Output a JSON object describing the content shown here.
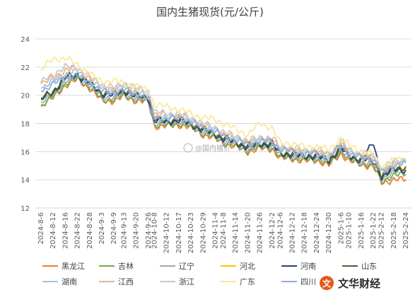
{
  "chart_data": {
    "type": "line",
    "title": "国内生猪现货(元/公斤)",
    "xlabel": "",
    "ylabel": "",
    "ylim": [
      12,
      24
    ],
    "yticks": [
      12,
      14,
      16,
      18,
      20,
      22,
      24
    ],
    "grid": true,
    "legend_position": "bottom",
    "x_tick_labels": [
      "2024-8-6",
      "2024-8-12",
      "2024-8-16",
      "2024-8-22",
      "2024-8-28",
      "2024-9-3",
      "2024-9-9",
      "2024-9-13",
      "2024-9-20",
      "2024-9-26",
      "2024-10-8",
      "2024-10-12",
      "2024-10-17",
      "2024-10-23",
      "2024-10-29",
      "2024-11-4",
      "2024-11-8",
      "2024-11-14",
      "2024-11-20",
      "2024-11-26",
      "2024-12-2",
      "2024-12-6",
      "2024-12-12",
      "2024-12-18",
      "2024-12-24",
      "2024-12-30",
      "2025-1-6",
      "2025-1-10",
      "2025-1-16",
      "2025-1-22",
      "2025-2-12",
      "2025-2-18",
      "2025-2-24"
    ],
    "anchors": [
      0,
      6,
      12,
      18,
      24,
      30,
      36,
      41,
      47,
      53,
      56,
      62,
      68,
      74,
      80,
      86,
      90,
      96,
      102,
      108,
      114,
      118,
      124,
      130,
      136,
      142,
      148,
      152,
      158,
      164,
      168,
      174,
      180
    ],
    "series": [
      {
        "name": "黑龙江",
        "color": "#ed7d31",
        "values": [
          19.3,
          19.8,
          20.7,
          21.1,
          20.5,
          19.6,
          19.6,
          19.9,
          19.6,
          19.5,
          17.8,
          17.8,
          17.9,
          17.7,
          17.2,
          16.9,
          16.6,
          16.3,
          16.0,
          16.2,
          16.2,
          15.5,
          15.5,
          15.3,
          15.4,
          15.0,
          15.9,
          15.3,
          15.1,
          14.9,
          13.8,
          14.0,
          14.0
        ]
      },
      {
        "name": "吉林",
        "color": "#70ad47",
        "values": [
          19.2,
          19.9,
          20.8,
          21.2,
          20.6,
          19.7,
          19.7,
          20.0,
          19.7,
          19.6,
          17.9,
          17.9,
          18.0,
          17.8,
          17.3,
          17.0,
          16.7,
          16.4,
          16.1,
          16.3,
          16.3,
          15.6,
          15.6,
          15.4,
          15.5,
          15.1,
          16.1,
          15.4,
          15.2,
          15.0,
          13.9,
          14.3,
          14.4
        ]
      },
      {
        "name": "辽宁",
        "color": "#a5a5a5",
        "values": [
          19.5,
          20.0,
          21.0,
          21.3,
          20.7,
          19.9,
          19.8,
          20.1,
          19.8,
          19.7,
          18.0,
          18.0,
          18.1,
          17.9,
          17.4,
          17.1,
          16.8,
          16.5,
          16.2,
          16.4,
          16.4,
          15.7,
          15.7,
          15.5,
          15.6,
          15.2,
          16.2,
          15.5,
          15.3,
          15.1,
          14.1,
          14.5,
          14.7
        ]
      },
      {
        "name": "河北",
        "color": "#ffc000",
        "values": [
          19.8,
          20.3,
          21.3,
          21.5,
          20.9,
          20.2,
          20.1,
          20.4,
          20.0,
          19.9,
          18.3,
          18.2,
          18.3,
          18.0,
          17.6,
          17.3,
          17.0,
          16.7,
          16.4,
          16.6,
          16.6,
          15.9,
          15.9,
          15.7,
          15.8,
          15.4,
          16.4,
          15.7,
          15.5,
          15.3,
          14.3,
          14.8,
          15.0
        ]
      },
      {
        "name": "河南",
        "color": "#264478",
        "values": [
          19.7,
          20.2,
          21.2,
          21.4,
          20.8,
          20.1,
          20.0,
          20.3,
          19.9,
          19.8,
          18.2,
          18.1,
          18.2,
          17.9,
          17.5,
          17.2,
          16.9,
          16.6,
          16.3,
          16.5,
          16.5,
          15.8,
          15.8,
          15.6,
          15.7,
          15.3,
          16.3,
          15.6,
          15.4,
          16.6,
          14.2,
          14.7,
          14.7
        ]
      },
      {
        "name": "山东",
        "color": "#43682b",
        "values": [
          19.8,
          20.3,
          21.3,
          21.5,
          20.9,
          20.2,
          20.1,
          20.4,
          20.0,
          19.9,
          18.3,
          18.2,
          18.3,
          18.0,
          17.6,
          17.3,
          17.0,
          16.7,
          16.4,
          16.6,
          16.6,
          15.9,
          15.9,
          15.7,
          15.8,
          15.4,
          16.4,
          15.7,
          15.5,
          15.3,
          14.3,
          14.8,
          14.9
        ]
      },
      {
        "name": "湖南",
        "color": "#9dc3e6",
        "values": [
          20.5,
          21.0,
          21.5,
          21.7,
          21.0,
          20.5,
          20.3,
          20.6,
          20.2,
          20.0,
          18.5,
          18.4,
          18.5,
          18.2,
          17.8,
          17.5,
          17.2,
          16.9,
          16.6,
          16.8,
          16.8,
          16.1,
          16.1,
          15.9,
          16.0,
          15.6,
          16.6,
          15.9,
          15.7,
          15.5,
          14.6,
          15.1,
          15.3
        ]
      },
      {
        "name": "江西",
        "color": "#f4b183",
        "values": [
          20.8,
          21.2,
          21.8,
          21.9,
          21.2,
          20.7,
          20.4,
          20.8,
          20.4,
          20.2,
          18.7,
          18.6,
          18.6,
          18.3,
          17.9,
          17.6,
          17.3,
          17.0,
          16.7,
          16.9,
          16.9,
          16.2,
          16.2,
          16.0,
          16.1,
          15.7,
          16.7,
          16.0,
          15.8,
          15.6,
          14.7,
          15.2,
          15.4
        ]
      },
      {
        "name": "浙江",
        "color": "#c9c9c9",
        "values": [
          20.9,
          21.5,
          22.0,
          22.0,
          21.3,
          20.8,
          20.5,
          20.9,
          20.5,
          20.3,
          18.8,
          18.7,
          18.7,
          18.4,
          18.0,
          17.7,
          17.4,
          17.1,
          16.8,
          17.0,
          17.0,
          16.3,
          16.3,
          16.1,
          16.2,
          15.8,
          16.8,
          16.1,
          15.9,
          15.7,
          14.8,
          15.3,
          15.5
        ]
      },
      {
        "name": "广东",
        "color": "#ffe699",
        "values": [
          21.8,
          22.6,
          22.6,
          22.2,
          21.5,
          21.0,
          21.0,
          20.9,
          20.6,
          20.4,
          19.3,
          19.2,
          19.0,
          18.7,
          18.4,
          18.3,
          18.0,
          17.6,
          17.2,
          18.0,
          17.7,
          16.6,
          16.6,
          16.3,
          16.4,
          16.1,
          17.0,
          16.4,
          16.1,
          15.8,
          14.9,
          15.4,
          15.5
        ]
      },
      {
        "name": "四川",
        "color": "#8faadc",
        "values": [
          20.3,
          20.8,
          21.2,
          21.4,
          20.8,
          20.3,
          20.1,
          20.4,
          20.0,
          19.8,
          18.4,
          18.3,
          18.4,
          18.1,
          17.7,
          17.4,
          17.1,
          16.8,
          16.5,
          16.7,
          16.7,
          16.2,
          16.0,
          15.8,
          15.9,
          15.5,
          16.5,
          15.8,
          15.6,
          15.4,
          14.5,
          15.0,
          15.2
        ]
      }
    ]
  },
  "watermark": {
    "text": "@国内猪价",
    "brand": "文华财经",
    "logo_char": "文"
  }
}
